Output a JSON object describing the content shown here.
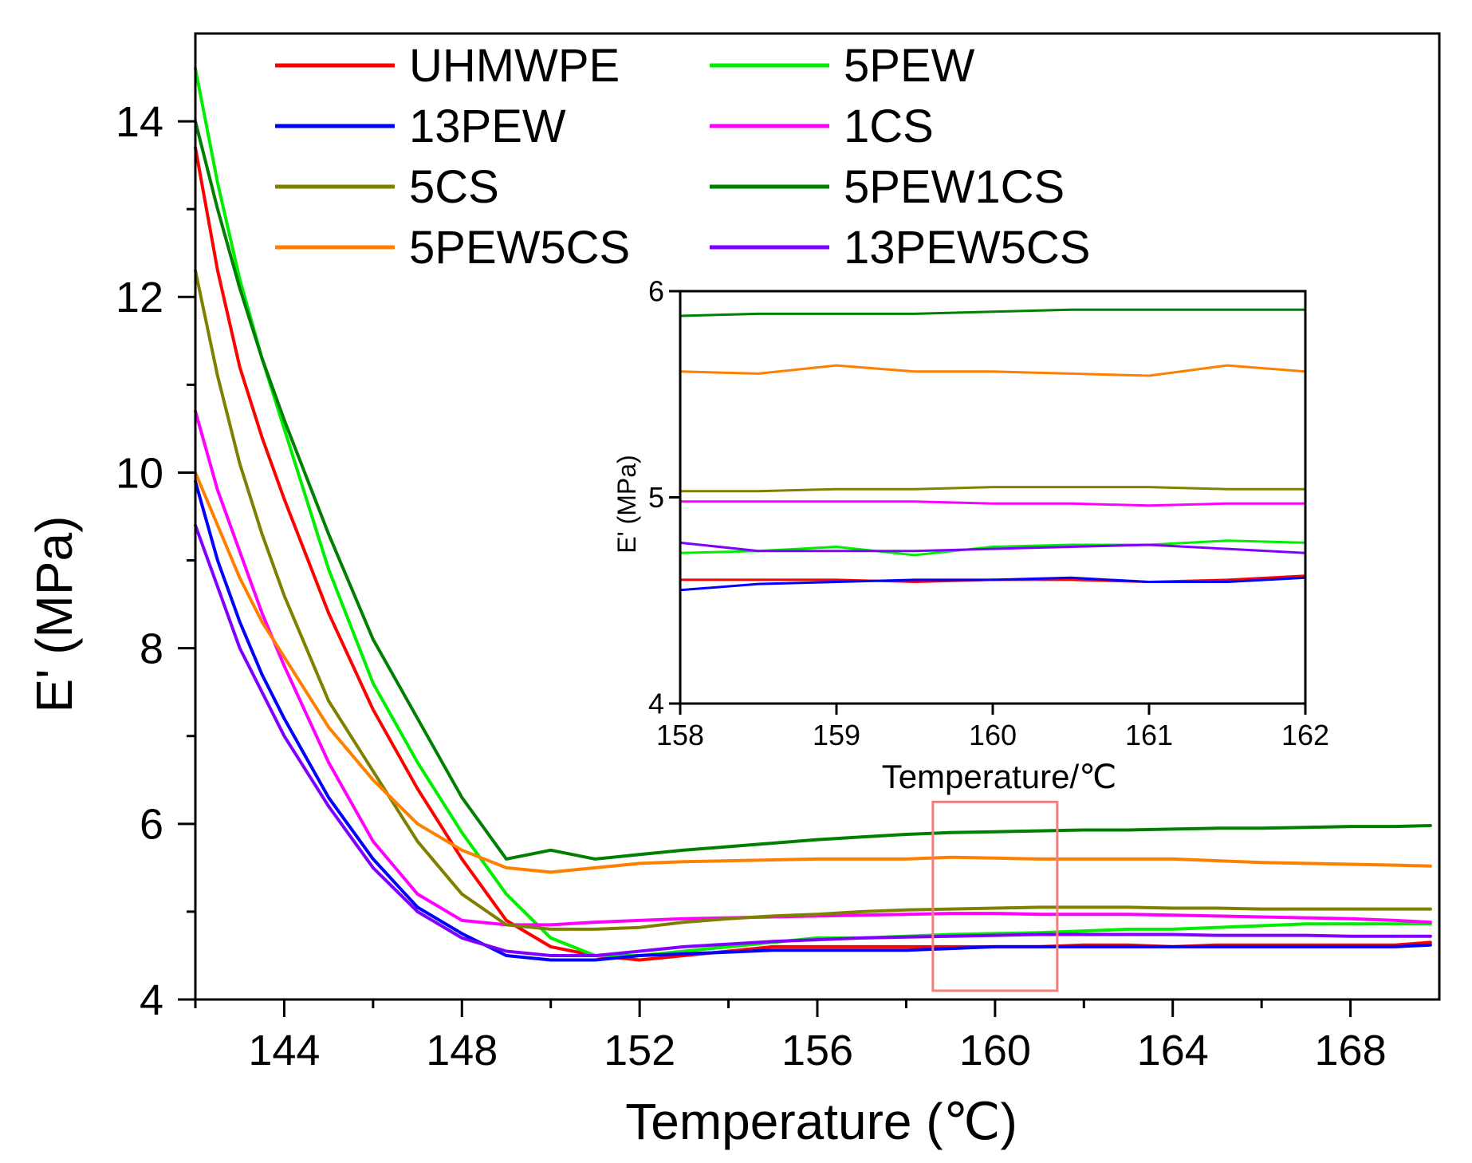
{
  "chart_data": {
    "type": "line",
    "main": {
      "xlabel": "Temperature (℃)",
      "ylabel": "E' (MPa)",
      "xlim": [
        142,
        170
      ],
      "ylim": [
        4,
        15
      ],
      "xticks": [
        144,
        148,
        152,
        156,
        160,
        164,
        168
      ],
      "yticks": [
        4,
        6,
        8,
        10,
        12,
        14
      ],
      "x": [
        142,
        142.5,
        143,
        143.5,
        144,
        145,
        146,
        147,
        148,
        149,
        150,
        151,
        152,
        153,
        154,
        155,
        156,
        157,
        158,
        159,
        160,
        161,
        162,
        163,
        164,
        165,
        166,
        167,
        168,
        169,
        169.8
      ],
      "series": [
        {
          "name": "UHMWPE",
          "color": "#ff0000",
          "values": [
            13.7,
            12.3,
            11.2,
            10.4,
            9.7,
            8.4,
            7.3,
            6.4,
            5.6,
            4.9,
            4.6,
            4.5,
            4.45,
            4.5,
            4.55,
            4.6,
            4.6,
            4.6,
            4.6,
            4.6,
            4.6,
            4.6,
            4.62,
            4.62,
            4.6,
            4.62,
            4.62,
            4.62,
            4.62,
            4.62,
            4.65
          ]
        },
        {
          "name": "5PEW",
          "color": "#00ee00",
          "values": [
            14.6,
            13.3,
            12.2,
            11.3,
            10.5,
            8.9,
            7.6,
            6.7,
            5.9,
            5.2,
            4.7,
            4.5,
            4.5,
            4.55,
            4.6,
            4.65,
            4.7,
            4.7,
            4.72,
            4.74,
            4.75,
            4.76,
            4.78,
            4.8,
            4.8,
            4.82,
            4.84,
            4.86,
            4.86,
            4.86,
            4.86
          ]
        },
        {
          "name": "13PEW",
          "color": "#0000ff",
          "values": [
            9.9,
            9.0,
            8.3,
            7.7,
            7.2,
            6.3,
            5.6,
            5.05,
            4.75,
            4.5,
            4.45,
            4.45,
            4.5,
            4.52,
            4.54,
            4.56,
            4.56,
            4.56,
            4.56,
            4.58,
            4.6,
            4.6,
            4.6,
            4.6,
            4.6,
            4.6,
            4.6,
            4.6,
            4.6,
            4.6,
            4.62
          ]
        },
        {
          "name": "1CS",
          "color": "#ff00ff",
          "values": [
            10.7,
            9.8,
            9.1,
            8.4,
            7.8,
            6.7,
            5.8,
            5.2,
            4.9,
            4.85,
            4.85,
            4.88,
            4.9,
            4.92,
            4.93,
            4.94,
            4.95,
            4.96,
            4.97,
            4.98,
            4.98,
            4.97,
            4.97,
            4.97,
            4.96,
            4.95,
            4.94,
            4.93,
            4.92,
            4.9,
            4.88
          ]
        },
        {
          "name": "5CS",
          "color": "#808000",
          "values": [
            12.3,
            11.1,
            10.1,
            9.3,
            8.6,
            7.4,
            6.6,
            5.8,
            5.2,
            4.85,
            4.8,
            4.8,
            4.82,
            4.88,
            4.92,
            4.95,
            4.97,
            5.0,
            5.02,
            5.03,
            5.04,
            5.05,
            5.05,
            5.05,
            5.04,
            5.04,
            5.03,
            5.03,
            5.03,
            5.03,
            5.03
          ]
        },
        {
          "name": "5PEW1CS",
          "color": "#008000",
          "values": [
            14.0,
            13.0,
            12.1,
            11.3,
            10.6,
            9.3,
            8.1,
            7.2,
            6.3,
            5.6,
            5.7,
            5.6,
            5.65,
            5.7,
            5.74,
            5.78,
            5.82,
            5.85,
            5.88,
            5.9,
            5.91,
            5.92,
            5.93,
            5.93,
            5.94,
            5.95,
            5.95,
            5.96,
            5.97,
            5.97,
            5.98
          ]
        },
        {
          "name": "5PEW5CS",
          "color": "#ff8000",
          "values": [
            10.0,
            9.4,
            8.8,
            8.3,
            7.9,
            7.1,
            6.5,
            6.0,
            5.7,
            5.5,
            5.45,
            5.5,
            5.55,
            5.57,
            5.58,
            5.59,
            5.6,
            5.6,
            5.6,
            5.62,
            5.61,
            5.6,
            5.6,
            5.6,
            5.6,
            5.58,
            5.56,
            5.55,
            5.54,
            5.53,
            5.52
          ]
        },
        {
          "name": "13PEW5CS",
          "color": "#8000ff",
          "values": [
            9.4,
            8.7,
            8.0,
            7.5,
            7.0,
            6.2,
            5.5,
            5.0,
            4.7,
            4.55,
            4.5,
            4.5,
            4.55,
            4.6,
            4.63,
            4.66,
            4.68,
            4.7,
            4.71,
            4.72,
            4.73,
            4.74,
            4.74,
            4.74,
            4.74,
            4.73,
            4.73,
            4.73,
            4.72,
            4.72,
            4.72
          ]
        }
      ],
      "highlight_box": {
        "x": [
          158.6,
          161.4
        ],
        "y": [
          4.1,
          6.25
        ],
        "color": "#f08080"
      }
    },
    "inset": {
      "xlabel": "Temperature/℃",
      "ylabel": "E' (MPa)",
      "xlim": [
        158,
        162
      ],
      "ylim": [
        4,
        6
      ],
      "xticks": [
        158,
        159,
        160,
        161,
        162
      ],
      "yticks": [
        4,
        5,
        6
      ],
      "x": [
        158,
        158.5,
        159,
        159.5,
        160,
        160.5,
        161,
        161.5,
        162
      ],
      "series": [
        {
          "name": "UHMWPE",
          "color": "#ff0000",
          "values": [
            4.6,
            4.6,
            4.6,
            4.59,
            4.6,
            4.6,
            4.59,
            4.6,
            4.62
          ]
        },
        {
          "name": "5PEW",
          "color": "#00ee00",
          "values": [
            4.73,
            4.74,
            4.76,
            4.72,
            4.76,
            4.77,
            4.77,
            4.79,
            4.78
          ]
        },
        {
          "name": "13PEW",
          "color": "#0000ff",
          "values": [
            4.55,
            4.58,
            4.59,
            4.6,
            4.6,
            4.61,
            4.59,
            4.59,
            4.61
          ]
        },
        {
          "name": "1CS",
          "color": "#ff00ff",
          "values": [
            4.98,
            4.98,
            4.98,
            4.98,
            4.97,
            4.97,
            4.96,
            4.97,
            4.97
          ]
        },
        {
          "name": "5CS",
          "color": "#808000",
          "values": [
            5.03,
            5.03,
            5.04,
            5.04,
            5.05,
            5.05,
            5.05,
            5.04,
            5.04
          ]
        },
        {
          "name": "5PEW1CS",
          "color": "#008000",
          "values": [
            5.88,
            5.89,
            5.89,
            5.89,
            5.9,
            5.91,
            5.91,
            5.91,
            5.91
          ]
        },
        {
          "name": "5PEW5CS",
          "color": "#ff8000",
          "values": [
            5.61,
            5.6,
            5.64,
            5.61,
            5.61,
            5.6,
            5.59,
            5.64,
            5.61
          ]
        },
        {
          "name": "13PEW5CS",
          "color": "#8000ff",
          "values": [
            4.78,
            4.74,
            4.74,
            4.74,
            4.75,
            4.76,
            4.77,
            4.75,
            4.73
          ]
        }
      ]
    },
    "legend": {
      "position": "top",
      "entries": [
        "UHMWPE",
        "5PEW",
        "13PEW",
        "1CS",
        "5CS",
        "5PEW1CS",
        "5PEW5CS",
        "13PEW5CS"
      ]
    }
  }
}
